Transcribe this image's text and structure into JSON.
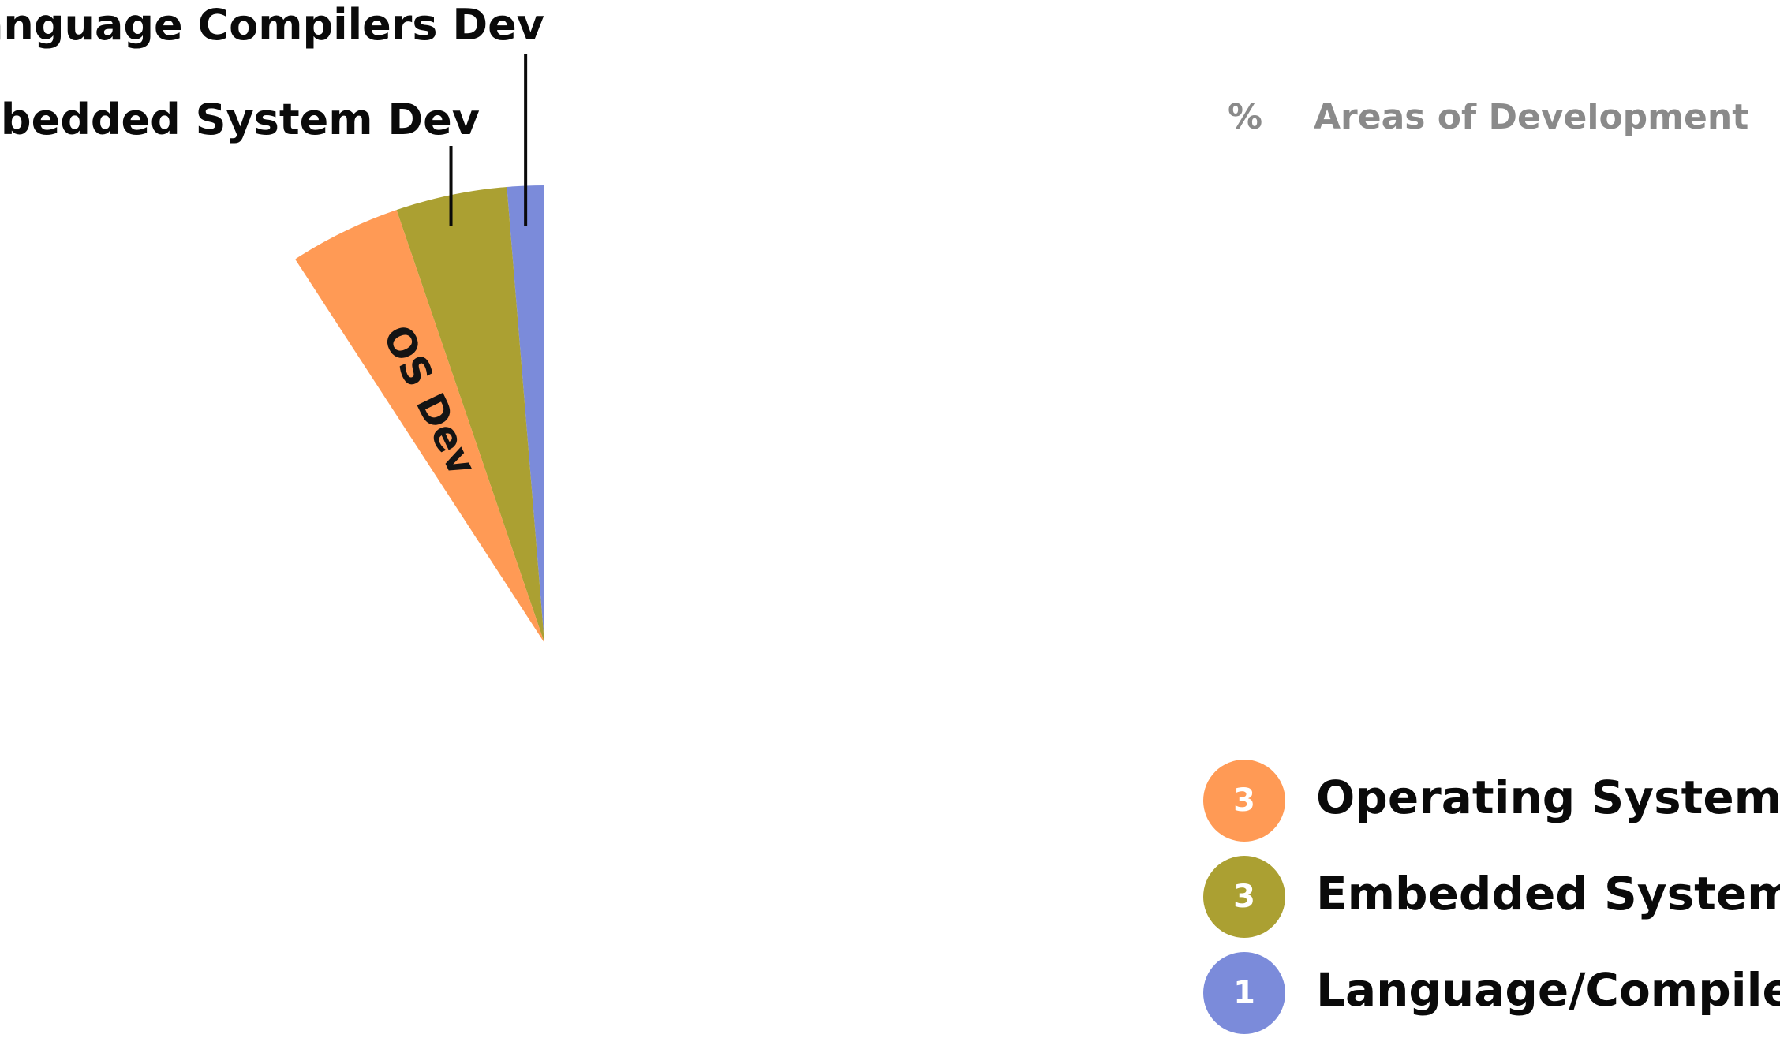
{
  "chart_data": {
    "type": "pie",
    "header": {
      "value_column": "%",
      "category_column": "Areas of Development"
    },
    "slices": [
      {
        "label": "OS Dev",
        "value": 3,
        "color": "#FF9A55"
      },
      {
        "label": "Embedded System Dev",
        "value": 3,
        "color": "#ABA032"
      },
      {
        "label": "Language Compilers Dev",
        "value": 1,
        "color": "#7B8BDA"
      }
    ],
    "legend": [
      {
        "count": "3",
        "label": "Operating System",
        "color": "#FF9A55"
      },
      {
        "count": "3",
        "label": "Embedded Systems",
        "color": "#ABA032"
      },
      {
        "count": "1",
        "label": "Language/Compilers",
        "color": "#7B8BDA"
      }
    ],
    "legend_placement": "bottom-right"
  }
}
